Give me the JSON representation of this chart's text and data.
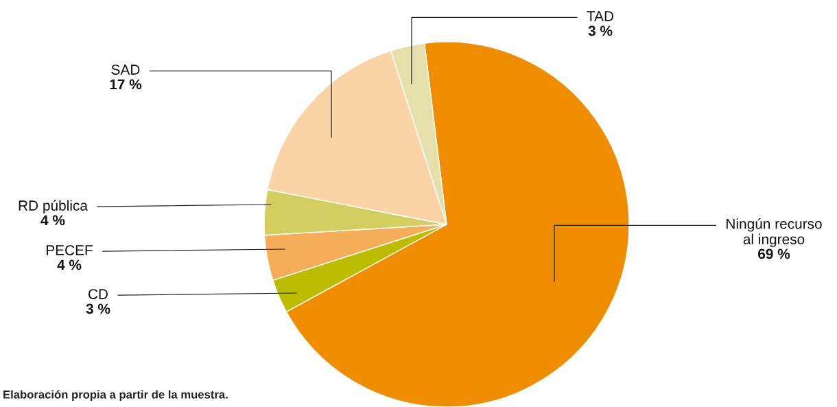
{
  "chart_data": {
    "type": "pie",
    "categories": [
      "Ningún recurso\nal ingreso",
      "CD",
      "PECEF",
      "RD pública",
      "SAD",
      "TAD"
    ],
    "values": [
      69,
      3,
      4,
      4,
      17,
      3
    ],
    "colors": [
      "#f08c00",
      "#bcbc00",
      "#f5ad5a",
      "#d4cd60",
      "#fad3a6",
      "#e5e0ab"
    ],
    "value_labels": [
      "69 %",
      "3 %",
      "4 %",
      "4 %",
      "17 %",
      "3 %"
    ],
    "annotations": [
      "Elaboración propia a partir de la muestra."
    ]
  }
}
